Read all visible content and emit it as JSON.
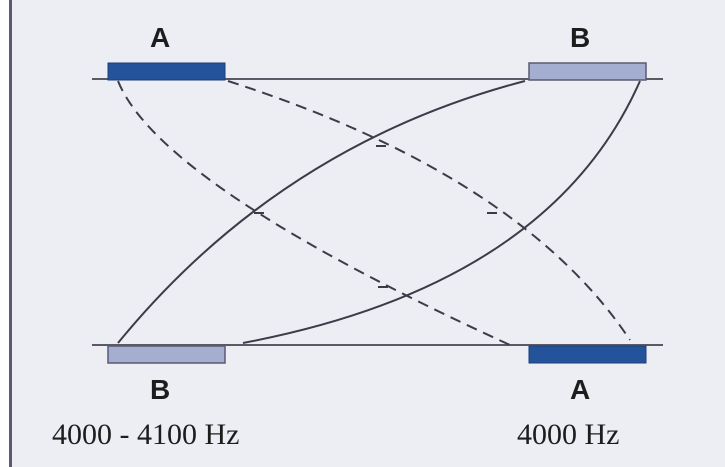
{
  "labels": {
    "top_left": "A",
    "top_right": "B",
    "bottom_left": "B",
    "bottom_right": "A",
    "bottom_left_freq": "4000 - 4100 Hz",
    "bottom_right_freq": "4000 Hz"
  },
  "colors": {
    "background": "#eceef4",
    "block_dark": "#24539c",
    "block_light": "#a4aed0",
    "line": "#3c3c48"
  }
}
